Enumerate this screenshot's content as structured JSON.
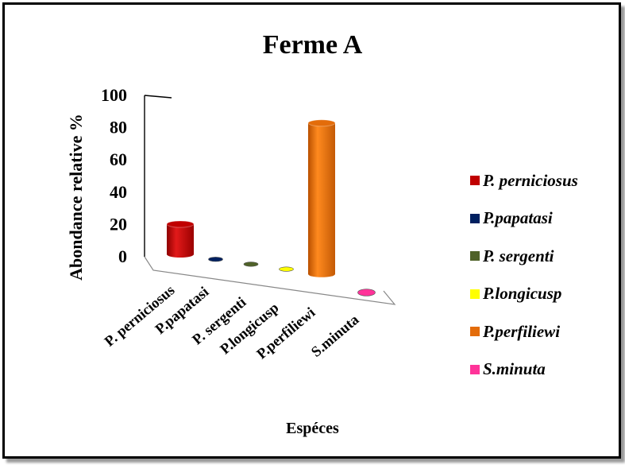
{
  "chart_data": {
    "type": "bar",
    "title": "Ferme A",
    "xlabel": "Espéces",
    "ylabel": "Abondance relative %",
    "ylim": [
      0,
      100
    ],
    "yticks": [
      "0",
      "20",
      "40",
      "60",
      "80",
      "100"
    ],
    "categories": [
      "P. perniciosus",
      "P.papatasi",
      "P. sergenti",
      "P.longicusp",
      "P.perfiliewi",
      "S.minuta"
    ],
    "values": [
      16,
      0,
      0,
      0,
      80,
      0
    ],
    "colors": [
      "#c00000",
      "#002060",
      "#4f6228",
      "#ffff00",
      "#e36c0a",
      "#ff3399"
    ],
    "legend": [
      "P. perniciosus",
      "P.papatasi",
      "P. sergenti",
      "P.longicusp",
      "P.perfiliewi",
      "S.minuta"
    ],
    "legend_position": "right"
  }
}
